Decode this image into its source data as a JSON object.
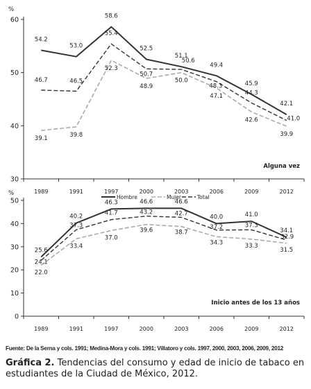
{
  "chart_data": [
    {
      "type": "line",
      "title": "",
      "annotation": "Alguna vez",
      "ylabel": "%",
      "ylim": [
        30,
        60
      ],
      "yticks": [
        30,
        40,
        50,
        60
      ],
      "grid": false,
      "categories": [
        "1989",
        "1991",
        "1997",
        "2000",
        "2003",
        "2006",
        "2009",
        "2012"
      ],
      "series": [
        {
          "name": "Hombre",
          "style": "solid",
          "color": "#333333",
          "values": [
            54.2,
            53.0,
            58.6,
            52.5,
            51.1,
            49.4,
            45.9,
            42.1
          ]
        },
        {
          "name": "Mujer",
          "style": "dashed",
          "color": "#aaaaaa",
          "values": [
            39.1,
            39.8,
            52.3,
            48.9,
            50.0,
            47.1,
            42.6,
            39.9
          ]
        },
        {
          "name": "Total",
          "style": "dashed",
          "color": "#333333",
          "values": [
            46.7,
            46.5,
            55.4,
            50.7,
            50.6,
            48.3,
            44.3,
            41.0
          ]
        }
      ]
    },
    {
      "type": "line",
      "title": "",
      "annotation": "Inicio antes de los 13 años",
      "ylabel": "%",
      "ylim": [
        0,
        50
      ],
      "yticks": [
        0,
        10,
        20,
        30,
        40,
        50
      ],
      "grid": false,
      "legend": "top-center",
      "categories": [
        "1989",
        "1991",
        "1997",
        "2000",
        "2003",
        "2006",
        "2009",
        "2012"
      ],
      "series": [
        {
          "name": "Hombre",
          "style": "solid",
          "color": "#333333",
          "values": [
            25.6,
            40.2,
            46.3,
            46.6,
            46.6,
            40.0,
            41.0,
            34.1
          ]
        },
        {
          "name": "Mujer",
          "style": "dashed",
          "color": "#aaaaaa",
          "values": [
            22.0,
            33.4,
            37.0,
            39.6,
            38.7,
            34.3,
            33.3,
            31.5
          ]
        },
        {
          "name": "Total",
          "style": "dashed",
          "color": "#333333",
          "values": [
            24.1,
            37.3,
            41.7,
            43.2,
            42.7,
            37.2,
            37.3,
            32.9
          ]
        }
      ]
    }
  ],
  "source": "Fuente: De la Serna y cols. 1991; Medina-Mora y cols. 1991; Villatoro y cols. 1997, 2000, 2003, 2006, 2009, 2012",
  "caption": {
    "label": "Gráfica 2.",
    "text": " Tendencias del consumo y edad de inicio de tabaco en estudiantes de la Ciudad de México, 2012."
  }
}
